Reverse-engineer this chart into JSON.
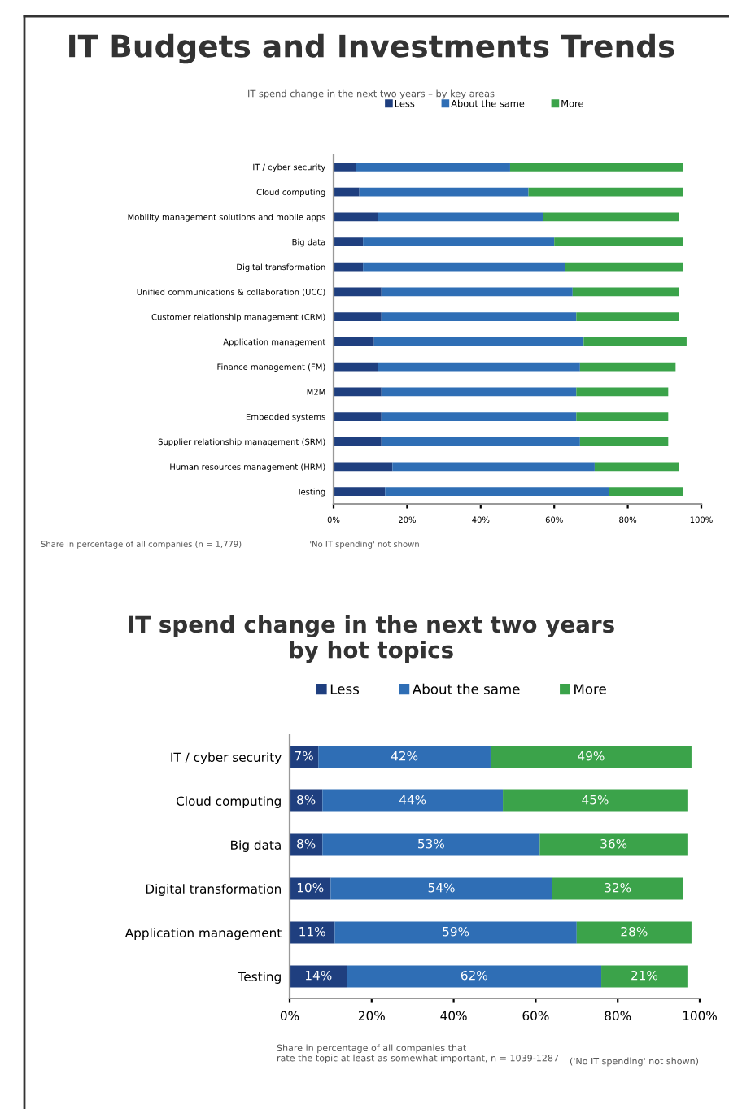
{
  "chart_data": [
    {
      "type": "bar",
      "orientation": "horizontal",
      "stacked": true,
      "title": "IT Budgets and Investments Trends",
      "subtitle": "IT spend change in the next two years – by key areas",
      "categories": [
        "IT / cyber security",
        "Cloud computing",
        "Mobility management solutions and mobile apps",
        "Big data",
        "Digital transformation",
        "Unified communications & collaboration (UCC)",
        "Customer relationship management (CRM)",
        "Application management",
        "Finance management (FM)",
        "M2M",
        "Embedded systems",
        "Supplier relationship management (SRM)",
        "Human resources management (HRM)",
        "Testing"
      ],
      "series": [
        {
          "name": "Less",
          "color": "#1f3f7f",
          "values": [
            6,
            7,
            12,
            8,
            8,
            13,
            13,
            11,
            12,
            13,
            13,
            13,
            16,
            14
          ]
        },
        {
          "name": "About the same",
          "color": "#2f6eb5",
          "values": [
            42,
            46,
            45,
            52,
            55,
            52,
            53,
            57,
            55,
            53,
            53,
            54,
            55,
            61
          ]
        },
        {
          "name": "More",
          "color": "#3ba34a",
          "values": [
            47,
            42,
            37,
            35,
            32,
            29,
            28,
            28,
            26,
            25,
            25,
            24,
            23,
            20
          ]
        }
      ],
      "xlim": [
        0,
        100
      ],
      "xticks": [
        {
          "value": 0,
          "label": "0%"
        },
        {
          "value": 20,
          "label": "20%"
        },
        {
          "value": 40,
          "label": "40%"
        },
        {
          "value": 60,
          "label": "60%"
        },
        {
          "value": 80,
          "label": "80%"
        },
        {
          "value": 100,
          "label": "100%"
        }
      ],
      "legend": "top",
      "grid": false,
      "annotations": [
        "Share in percentage of all companies (n = 1,779)",
        "'No IT spending' not shown"
      ]
    },
    {
      "type": "bar",
      "orientation": "horizontal",
      "stacked": true,
      "title": "IT spend change in the next two years\nby hot topics",
      "categories": [
        "IT / cyber security",
        "Cloud computing",
        "Big data",
        "Digital transformation",
        "Application management",
        "Testing"
      ],
      "series": [
        {
          "name": "Less",
          "color": "#1f3f7f",
          "values": [
            7,
            8,
            8,
            10,
            11,
            14
          ],
          "value_labels": [
            "7%",
            "8%",
            "8%",
            "10%",
            "11%",
            "14%"
          ]
        },
        {
          "name": "About the same",
          "color": "#2f6eb5",
          "values": [
            42,
            44,
            53,
            54,
            59,
            62
          ],
          "value_labels": [
            "42%",
            "44%",
            "53%",
            "54%",
            "59%",
            "62%"
          ]
        },
        {
          "name": "More",
          "color": "#3ba34a",
          "values": [
            49,
            45,
            36,
            32,
            28,
            21
          ],
          "value_labels": [
            "49%",
            "45%",
            "36%",
            "32%",
            "28%",
            "21%"
          ]
        }
      ],
      "xlim": [
        0,
        100
      ],
      "xticks": [
        {
          "value": 0,
          "label": "0%"
        },
        {
          "value": 20,
          "label": "20%"
        },
        {
          "value": 40,
          "label": "40%"
        },
        {
          "value": 60,
          "label": "60%"
        },
        {
          "value": 80,
          "label": "80%"
        },
        {
          "value": 100,
          "label": "100%"
        }
      ],
      "legend": "top",
      "grid": false,
      "annotations": [
        "Share in percentage of all companies that\nrate the topic at least as somewhat important, n = 1039-1287",
        "('No IT spending' not shown)"
      ]
    }
  ]
}
